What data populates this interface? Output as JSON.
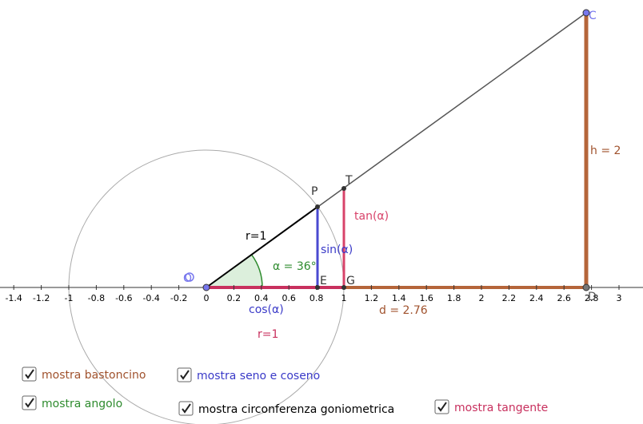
{
  "axis": {
    "tick_labels": [
      "-1.4",
      "-1.2",
      "-1",
      "-0.8",
      "-0.6",
      "-0.4",
      "-0.2",
      "0",
      "0.2",
      "0.4",
      "0.6",
      "0.8",
      "1",
      "1.2",
      "1.4",
      "1.6",
      "1.8",
      "2",
      "2.2",
      "2.4",
      "2.6",
      "2.8",
      "3",
      "3"
    ]
  },
  "points": {
    "O": "O",
    "P": "P",
    "T": "T",
    "E": "E",
    "G": "G",
    "C": "C",
    "D": "D"
  },
  "labels": {
    "radius": "r=1",
    "sin": "sin(α)",
    "tan": "tan(α)",
    "angle": "α = 36°",
    "cos": "cos(α)",
    "d": "d = 2.76",
    "h": "h = 2",
    "radius2": "r=1"
  },
  "checkboxes": [
    "mostra bastoncino",
    "mostra seno e coseno",
    "mostra angolo",
    "mostra circonferenza goniometrica",
    "mostra tangente"
  ]
}
